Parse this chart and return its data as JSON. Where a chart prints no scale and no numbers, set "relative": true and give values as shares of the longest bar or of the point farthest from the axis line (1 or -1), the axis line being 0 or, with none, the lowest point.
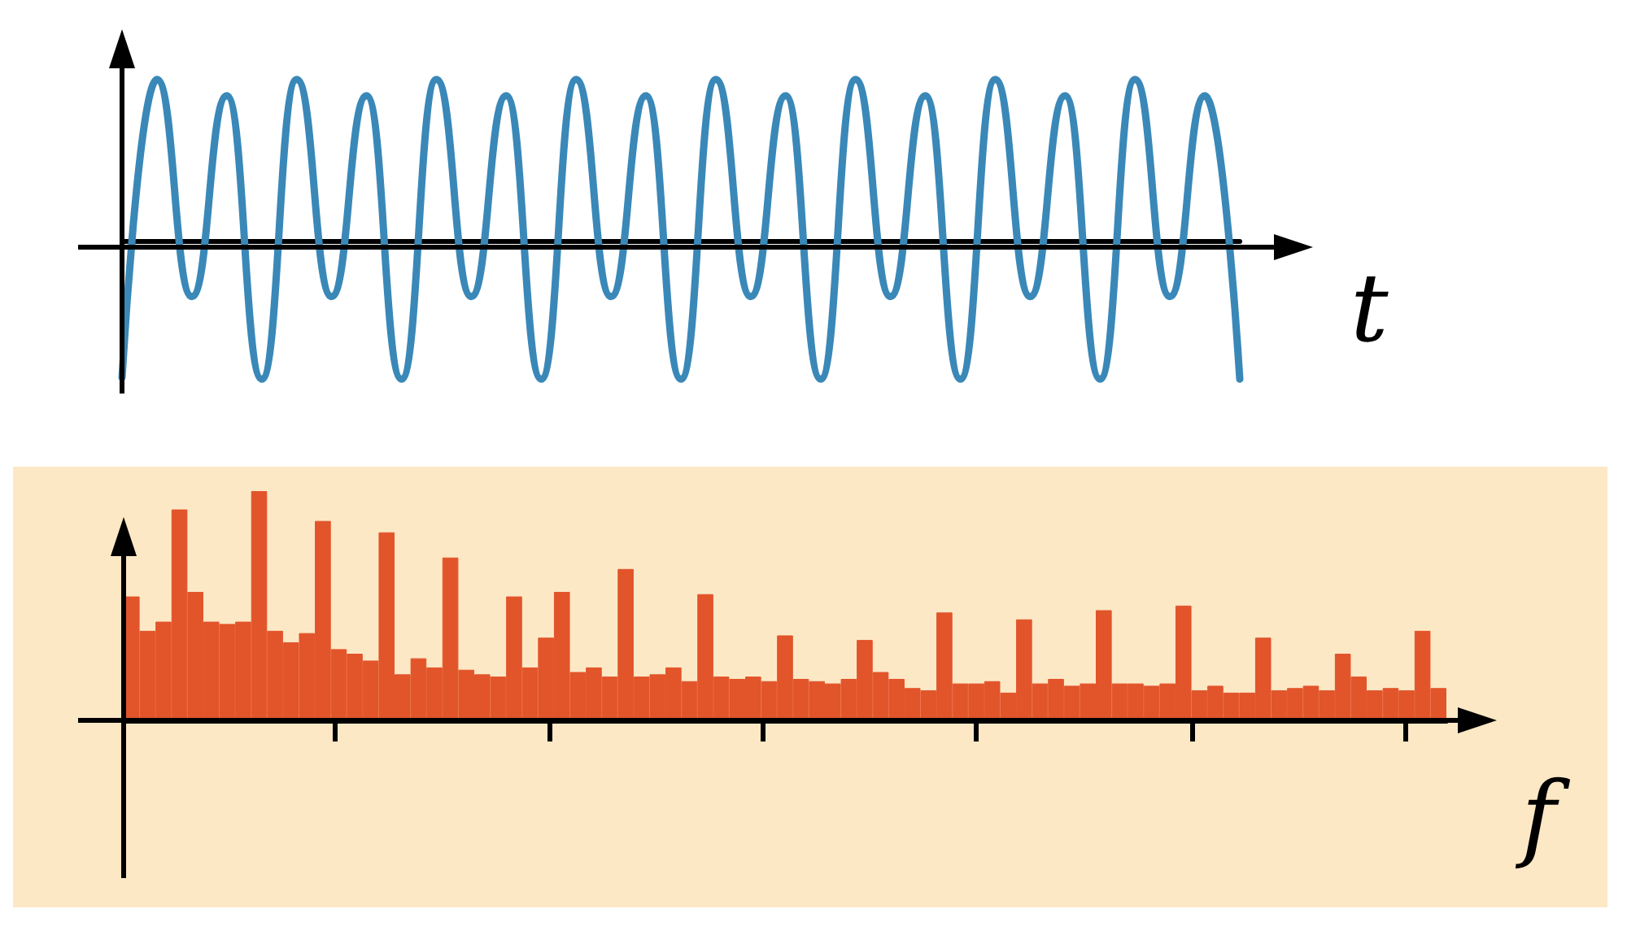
{
  "chart_data": [
    {
      "type": "line",
      "relative": true,
      "xlabel": "t",
      "color": "#3a88b8",
      "categories": [
        null,
        null,
        null,
        null,
        null,
        null,
        null,
        null,
        null,
        null,
        null,
        null,
        null,
        null,
        null,
        null,
        null,
        null,
        null,
        null,
        null,
        null,
        null,
        null,
        null,
        null,
        null,
        null,
        null,
        null,
        null,
        null,
        null
      ],
      "values": [
        -0.84,
        1,
        -0.34,
        0.9,
        -0.85,
        1,
        -0.34,
        0.9,
        -0.85,
        1,
        -0.34,
        0.9,
        -0.85,
        1,
        -0.34,
        0.9,
        -0.85,
        1,
        -0.34,
        0.9,
        -0.85,
        1,
        -0.34,
        0.9,
        -0.85,
        1,
        -0.34,
        0.9,
        -0.85,
        1,
        -0.34,
        0.9,
        -0.85
      ]
    },
    {
      "type": "bar",
      "relative": true,
      "xlabel": "f",
      "color": "#e2542a",
      "categories": [
        null,
        null,
        null,
        null,
        null,
        null,
        null,
        null,
        null,
        null,
        null,
        null,
        null,
        null,
        null,
        null,
        null,
        null,
        null,
        null,
        null,
        null,
        null,
        null,
        null,
        null,
        null,
        null,
        null,
        null,
        null,
        null,
        null,
        null,
        null,
        null,
        null,
        null,
        null,
        null,
        null,
        null,
        null,
        null,
        null,
        null,
        null,
        null,
        null,
        null,
        null,
        null,
        null,
        null,
        null,
        null,
        null,
        null,
        null,
        null,
        null,
        null,
        null,
        null,
        null,
        null,
        null,
        null,
        null,
        null,
        null,
        null,
        null,
        null,
        null,
        null,
        null,
        null,
        null,
        null,
        null,
        null,
        null
      ],
      "values": [
        0.54,
        0.39,
        0.43,
        0.92,
        0.56,
        0.43,
        0.42,
        0.43,
        1.0,
        0.39,
        0.34,
        0.38,
        0.87,
        0.31,
        0.29,
        0.26,
        0.82,
        0.2,
        0.27,
        0.23,
        0.71,
        0.22,
        0.2,
        0.19,
        0.54,
        0.23,
        0.36,
        0.56,
        0.21,
        0.23,
        0.19,
        0.66,
        0.19,
        0.2,
        0.23,
        0.17,
        0.55,
        0.19,
        0.18,
        0.19,
        0.17,
        0.37,
        0.18,
        0.17,
        0.16,
        0.18,
        0.35,
        0.21,
        0.18,
        0.14,
        0.13,
        0.47,
        0.16,
        0.16,
        0.17,
        0.12,
        0.44,
        0.16,
        0.18,
        0.15,
        0.16,
        0.48,
        0.16,
        0.16,
        0.15,
        0.16,
        0.5,
        0.13,
        0.15,
        0.12,
        0.12,
        0.36,
        0.13,
        0.14,
        0.15,
        0.13,
        0.29,
        0.19,
        0.13,
        0.14,
        0.13,
        0.39,
        0.14
      ]
    }
  ]
}
